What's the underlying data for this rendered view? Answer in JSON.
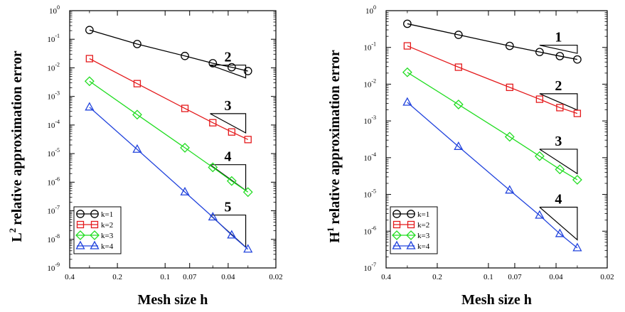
{
  "chart_data": [
    {
      "type": "line",
      "xscale": "log",
      "yscale": "log",
      "xreversed": true,
      "xlim": [
        0.4,
        0.02
      ],
      "ylim": [
        1e-09,
        1
      ],
      "xlabel": "Mesh size h",
      "ylabel": "relative approximation error",
      "ylabel_prefix": "L",
      "ylabel_sup": "2",
      "xticks": [
        {
          "v": 0.4,
          "label": "0.4"
        },
        {
          "v": 0.2,
          "label": "0.2"
        },
        {
          "v": 0.1,
          "label": "0.1"
        },
        {
          "v": 0.07,
          "label": "0.07"
        },
        {
          "v": 0.04,
          "label": "0.04"
        },
        {
          "v": 0.02,
          "label": "0.02"
        }
      ],
      "yticks": [
        {
          "e": 0,
          "label": "10",
          "sup": "0"
        },
        {
          "e": -1,
          "label": "10",
          "sup": "-1"
        },
        {
          "e": -2,
          "label": "10",
          "sup": "-2"
        },
        {
          "e": -3,
          "label": "10",
          "sup": "-3"
        },
        {
          "e": -4,
          "label": "10",
          "sup": "-4"
        },
        {
          "e": -5,
          "label": "10",
          "sup": "-5"
        },
        {
          "e": -6,
          "label": "10",
          "sup": "-6"
        },
        {
          "e": -7,
          "label": "10",
          "sup": "-7"
        },
        {
          "e": -8,
          "label": "10",
          "sup": "-8"
        },
        {
          "e": -9,
          "label": "10",
          "sup": "-9"
        }
      ],
      "series": [
        {
          "name": "k=1",
          "color": "#000000",
          "marker": "circle",
          "x": [
            0.3,
            0.15,
            0.075,
            0.05,
            0.038,
            0.03
          ],
          "y": [
            0.21,
            0.068,
            0.026,
            0.0145,
            0.0105,
            0.0077
          ]
        },
        {
          "name": "k=2",
          "color": "#e41a1c",
          "marker": "square",
          "x": [
            0.3,
            0.15,
            0.075,
            0.05,
            0.038,
            0.03
          ],
          "y": [
            0.021,
            0.0028,
            0.00038,
            0.00012,
            5.7e-05,
            3.1e-05
          ]
        },
        {
          "name": "k=3",
          "color": "#22dd22",
          "marker": "diamond",
          "x": [
            0.3,
            0.15,
            0.075,
            0.05,
            0.038,
            0.03
          ],
          "y": [
            0.0034,
            0.00023,
            1.6e-05,
            3.3e-06,
            1.1e-06,
            4.5e-07
          ]
        },
        {
          "name": "k=4",
          "color": "#2244dd",
          "marker": "triangle",
          "x": [
            0.3,
            0.15,
            0.075,
            0.05,
            0.038,
            0.03
          ],
          "y": [
            0.00042,
            1.4e-05,
            4.5e-07,
            6e-08,
            1.4e-08,
            4.5e-09
          ]
        }
      ],
      "slope_triangles": [
        {
          "label": "2",
          "x1": 0.052,
          "x2": 0.031,
          "y": 0.0125,
          "order": 2
        },
        {
          "label": "3",
          "x1": 0.052,
          "x2": 0.031,
          "y": 0.00025,
          "order": 3
        },
        {
          "label": "4",
          "x1": 0.052,
          "x2": 0.031,
          "y": 4.1e-06,
          "order": 4
        },
        {
          "label": "5",
          "x1": 0.052,
          "x2": 0.031,
          "y": 7.1e-08,
          "order": 5
        }
      ],
      "legend": "bottom-left"
    },
    {
      "type": "line",
      "xscale": "log",
      "yscale": "log",
      "xreversed": true,
      "xlim": [
        0.4,
        0.02
      ],
      "ylim": [
        1e-07,
        1
      ],
      "xlabel": "Mesh size h",
      "ylabel": "relative approximation error",
      "ylabel_prefix": "H",
      "ylabel_sup": "1",
      "xticks": [
        {
          "v": 0.4,
          "label": "0.4"
        },
        {
          "v": 0.2,
          "label": "0.2"
        },
        {
          "v": 0.1,
          "label": "0.1"
        },
        {
          "v": 0.07,
          "label": "0.07"
        },
        {
          "v": 0.04,
          "label": "0.04"
        },
        {
          "v": 0.02,
          "label": "0.02"
        }
      ],
      "yticks": [
        {
          "e": 0,
          "label": "10",
          "sup": "0"
        },
        {
          "e": -1,
          "label": "10",
          "sup": "-1"
        },
        {
          "e": -2,
          "label": "10",
          "sup": "-2"
        },
        {
          "e": -3,
          "label": "10",
          "sup": "-3"
        },
        {
          "e": -4,
          "label": "10",
          "sup": "-4"
        },
        {
          "e": -5,
          "label": "10",
          "sup": "-5"
        },
        {
          "e": -6,
          "label": "10",
          "sup": "-6"
        },
        {
          "e": -7,
          "label": "10",
          "sup": "-7"
        }
      ],
      "series": [
        {
          "name": "k=1",
          "color": "#000000",
          "marker": "circle",
          "x": [
            0.3,
            0.15,
            0.075,
            0.05,
            0.038,
            0.03
          ],
          "y": [
            0.44,
            0.22,
            0.11,
            0.075,
            0.058,
            0.047
          ]
        },
        {
          "name": "k=2",
          "color": "#e41a1c",
          "marker": "square",
          "x": [
            0.3,
            0.15,
            0.075,
            0.05,
            0.038,
            0.03
          ],
          "y": [
            0.11,
            0.029,
            0.0082,
            0.0039,
            0.0023,
            0.0016
          ]
        },
        {
          "name": "k=3",
          "color": "#22dd22",
          "marker": "diamond",
          "x": [
            0.3,
            0.15,
            0.075,
            0.05,
            0.038,
            0.03
          ],
          "y": [
            0.021,
            0.0028,
            0.00037,
            0.00011,
            4.8e-05,
            2.5e-05
          ]
        },
        {
          "name": "k=4",
          "color": "#2244dd",
          "marker": "triangle",
          "x": [
            0.3,
            0.15,
            0.075,
            0.05,
            0.038,
            0.03
          ],
          "y": [
            0.0032,
            0.0002,
            1.3e-05,
            2.7e-06,
            8.5e-07,
            3.5e-07
          ]
        }
      ],
      "slope_triangles": [
        {
          "label": "1",
          "x1": 0.05,
          "x2": 0.03,
          "y": 0.115,
          "order": 1
        },
        {
          "label": "2",
          "x1": 0.05,
          "x2": 0.03,
          "y": 0.0055,
          "order": 2
        },
        {
          "label": "3",
          "x1": 0.05,
          "x2": 0.03,
          "y": 0.00017,
          "order": 3
        },
        {
          "label": "4",
          "x1": 0.05,
          "x2": 0.03,
          "y": 4.5e-06,
          "order": 4
        }
      ],
      "legend": "bottom-left"
    }
  ]
}
